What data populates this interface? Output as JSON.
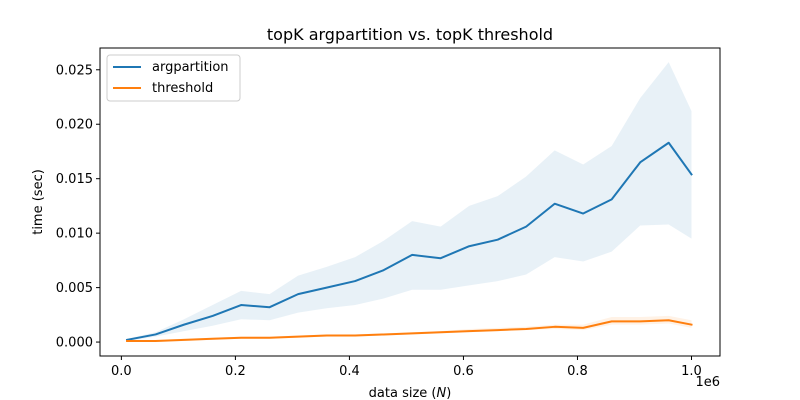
{
  "chart_data": {
    "type": "line",
    "title": "topK argpartition vs. topK threshold",
    "xlabel": "data size (",
    "xlabel_var": "N",
    "xlabel_close": ")",
    "ylabel": "time (sec)",
    "x_offset_label": "1e6",
    "xlim": [
      -0.0375,
      1.05
    ],
    "ylim": [
      -0.00128,
      0.027
    ],
    "xticks": [
      0.0,
      0.2,
      0.4,
      0.6,
      0.8,
      1.0
    ],
    "xtick_labels": [
      "0.0",
      "0.2",
      "0.4",
      "0.6",
      "0.8",
      "1.0"
    ],
    "yticks": [
      0.0,
      0.005,
      0.01,
      0.015,
      0.02,
      0.025
    ],
    "ytick_labels": [
      "0.000",
      "0.005",
      "0.010",
      "0.015",
      "0.020",
      "0.025"
    ],
    "grid": false,
    "legend_position": "top-left",
    "x": [
      0.01,
      0.06,
      0.11,
      0.16,
      0.21,
      0.26,
      0.31,
      0.36,
      0.41,
      0.46,
      0.51,
      0.56,
      0.61,
      0.66,
      0.71,
      0.76,
      0.81,
      0.86,
      0.91,
      0.96,
      1.0
    ],
    "series": [
      {
        "name": "argpartition",
        "color": "#1f77b4",
        "band_color": "#1f77b4",
        "values": [
          0.0002,
          0.0007,
          0.0016,
          0.0024,
          0.0034,
          0.0032,
          0.0044,
          0.005,
          0.0056,
          0.0066,
          0.008,
          0.0077,
          0.0088,
          0.0094,
          0.0106,
          0.0127,
          0.0118,
          0.0131,
          0.0165,
          0.0183,
          0.0154
        ],
        "lower": [
          0.0001,
          0.0005,
          0.001,
          0.0015,
          0.0021,
          0.002,
          0.0027,
          0.0031,
          0.0034,
          0.004,
          0.0048,
          0.0048,
          0.0052,
          0.0056,
          0.0062,
          0.0078,
          0.0074,
          0.0083,
          0.0107,
          0.0108,
          0.0095
        ],
        "upper": [
          0.0003,
          0.0009,
          0.0021,
          0.0034,
          0.0047,
          0.0044,
          0.0061,
          0.0069,
          0.0078,
          0.0093,
          0.0111,
          0.0106,
          0.0125,
          0.0134,
          0.0152,
          0.0176,
          0.0163,
          0.018,
          0.0224,
          0.0257,
          0.0212
        ]
      },
      {
        "name": "threshold",
        "color": "#ff7f0e",
        "band_color": "#ff7f0e",
        "values": [
          0.0001,
          0.0001,
          0.0002,
          0.0003,
          0.0004,
          0.0004,
          0.0005,
          0.0006,
          0.0006,
          0.0007,
          0.0008,
          0.0009,
          0.001,
          0.0011,
          0.0012,
          0.0014,
          0.0013,
          0.0019,
          0.0019,
          0.002,
          0.0016
        ],
        "lower": [
          0.0,
          0.0,
          0.0001,
          0.0002,
          0.0003,
          0.0003,
          0.0004,
          0.0005,
          0.0005,
          0.0006,
          0.0007,
          0.0008,
          0.0009,
          0.001,
          0.0011,
          0.0012,
          0.0011,
          0.0016,
          0.0016,
          0.0017,
          0.0013
        ],
        "upper": [
          0.0002,
          0.0002,
          0.0003,
          0.0004,
          0.0005,
          0.0005,
          0.0006,
          0.0007,
          0.0007,
          0.0008,
          0.0009,
          0.001,
          0.0012,
          0.0013,
          0.0014,
          0.0016,
          0.0016,
          0.0023,
          0.0023,
          0.0024,
          0.002
        ]
      }
    ]
  }
}
